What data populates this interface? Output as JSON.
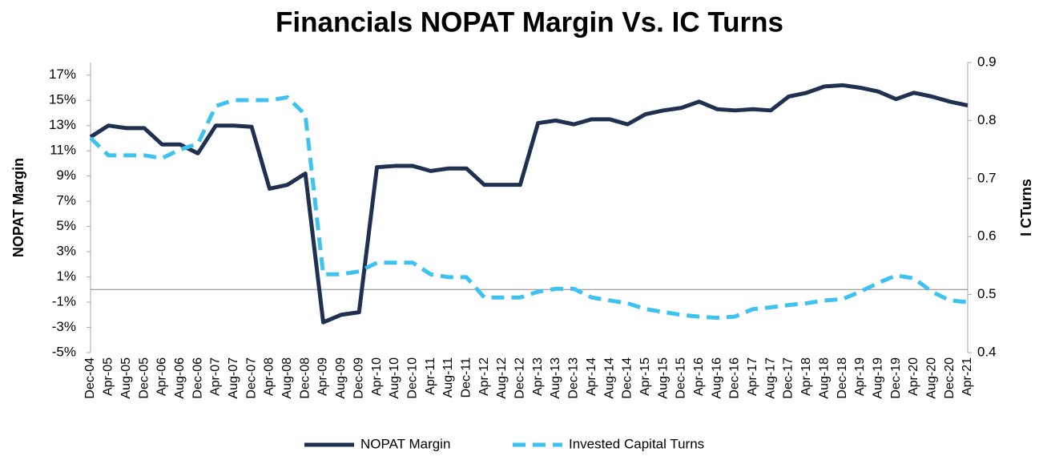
{
  "chart_data": {
    "type": "line",
    "title": "Financials NOPAT Margin Vs. IC Turns",
    "y_label": "NOPAT Margin",
    "y2_label": "I CTurns",
    "categories": [
      "Dec-04",
      "Apr-05",
      "Aug-05",
      "Dec-05",
      "Apr-06",
      "Aug-06",
      "Dec-06",
      "Apr-07",
      "Aug-07",
      "Dec-07",
      "Apr-08",
      "Aug-08",
      "Dec-08",
      "Apr-09",
      "Aug-09",
      "Dec-09",
      "Apr-10",
      "Aug-10",
      "Dec-10",
      "Apr-11",
      "Aug-11",
      "Dec-11",
      "Apr-12",
      "Aug-12",
      "Dec-12",
      "Apr-13",
      "Aug-13",
      "Dec-13",
      "Apr-14",
      "Aug-14",
      "Dec-14",
      "Apr-15",
      "Aug-15",
      "Dec-15",
      "Apr-16",
      "Aug-16",
      "Dec-16",
      "Apr-17",
      "Aug-17",
      "Dec-17",
      "Apr-18",
      "Aug-18",
      "Dec-18",
      "Apr-19",
      "Aug-19",
      "Dec-19",
      "Apr-20",
      "Aug-20",
      "Dec-20",
      "Apr-21"
    ],
    "series": [
      {
        "name": "NOPAT Margin",
        "color": "#1f3050",
        "dashed": false,
        "values": [
          12.1,
          13.0,
          12.8,
          12.8,
          11.5,
          11.5,
          10.8,
          13.0,
          13.0,
          12.9,
          8.0,
          8.3,
          9.2,
          -2.6,
          -2.0,
          -1.8,
          9.7,
          9.8,
          9.8,
          9.4,
          9.6,
          9.6,
          8.3,
          8.3,
          8.3,
          13.2,
          13.4,
          13.1,
          13.5,
          13.5,
          13.1,
          13.9,
          14.2,
          14.4,
          14.9,
          14.3,
          14.2,
          14.3,
          14.2,
          15.3,
          15.6,
          16.1,
          16.2,
          16.0,
          15.7,
          15.1,
          15.6,
          15.3,
          14.9,
          14.6
        ]
      },
      {
        "name": "Invested Capital Turns",
        "color": "#3ec3f0",
        "dashed": true,
        "axis": "y2",
        "values": [
          0.77,
          0.74,
          0.74,
          0.74,
          0.735,
          0.75,
          0.76,
          0.825,
          0.835,
          0.835,
          0.835,
          0.84,
          0.81,
          0.535,
          0.535,
          0.54,
          0.555,
          0.555,
          0.555,
          0.535,
          0.53,
          0.53,
          0.495,
          0.495,
          0.495,
          0.505,
          0.51,
          0.51,
          0.495,
          0.49,
          0.485,
          0.475,
          0.47,
          0.465,
          0.462,
          0.46,
          0.462,
          0.475,
          0.478,
          0.482,
          0.485,
          0.49,
          0.492,
          0.505,
          0.52,
          0.533,
          0.528,
          0.505,
          0.49,
          0.487
        ]
      }
    ],
    "ylim": [
      -5,
      18
    ],
    "yticks": [
      {
        "value": -5,
        "label": "-5%"
      },
      {
        "value": -3,
        "label": "-3%"
      },
      {
        "value": -1,
        "label": "-1%"
      },
      {
        "value": 1,
        "label": "1%"
      },
      {
        "value": 3,
        "label": "3%"
      },
      {
        "value": 5,
        "label": "5%"
      },
      {
        "value": 7,
        "label": "7%"
      },
      {
        "value": 9,
        "label": "9%"
      },
      {
        "value": 11,
        "label": "11%"
      },
      {
        "value": 13,
        "label": "13%"
      },
      {
        "value": 15,
        "label": "15%"
      },
      {
        "value": 17,
        "label": "17%"
      }
    ],
    "y2lim": [
      0.4,
      0.9
    ],
    "y2ticks": [
      0.4,
      0.5,
      0.6,
      0.7,
      0.8,
      0.9
    ],
    "legend": "bottom"
  }
}
